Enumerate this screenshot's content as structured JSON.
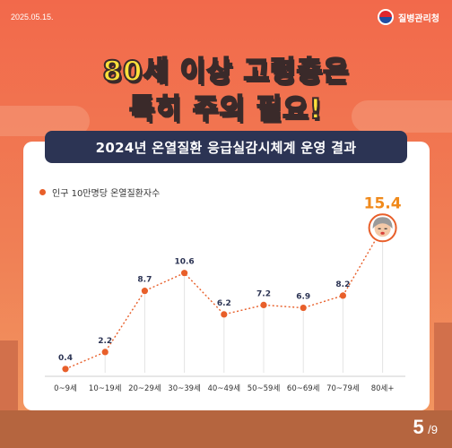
{
  "header": {
    "date": "2025.05.15.",
    "agency_name": "질병관리청"
  },
  "headline": {
    "line1": "80세 이상 고령층은",
    "line2": "특히 주의 필요!"
  },
  "banner_title": "2024년 온열질환 응급실감시체계 운영 결과",
  "legend_label": "인구 10만명당 온열질환자수",
  "pagination": {
    "current": "5",
    "total": "/9"
  },
  "colors": {
    "background": "#f2694b",
    "banner": "#2c3454",
    "line": "#e85f2a",
    "highlight_value": "#f08a1c",
    "headline_text": "#ffe13b"
  },
  "chart_data": {
    "type": "line",
    "categories": [
      "0~9세",
      "10~19세",
      "20~29세",
      "30~39세",
      "40~49세",
      "50~59세",
      "60~69세",
      "70~79세",
      "80세+"
    ],
    "series": [
      {
        "values": [
          0.4,
          2.2,
          8.7,
          10.6,
          6.2,
          7.2,
          6.9,
          8.2,
          15.4
        ]
      }
    ],
    "value_labels": [
      "0.4",
      "2.2",
      "8.7",
      "10.6",
      "6.2",
      "7.2",
      "6.9",
      "8.2",
      "15.4"
    ],
    "ylim": [
      0,
      16
    ],
    "highlight_index": 8,
    "grid": false,
    "legend_position": "top-left",
    "marker_icon": "elderly-face-icon"
  }
}
